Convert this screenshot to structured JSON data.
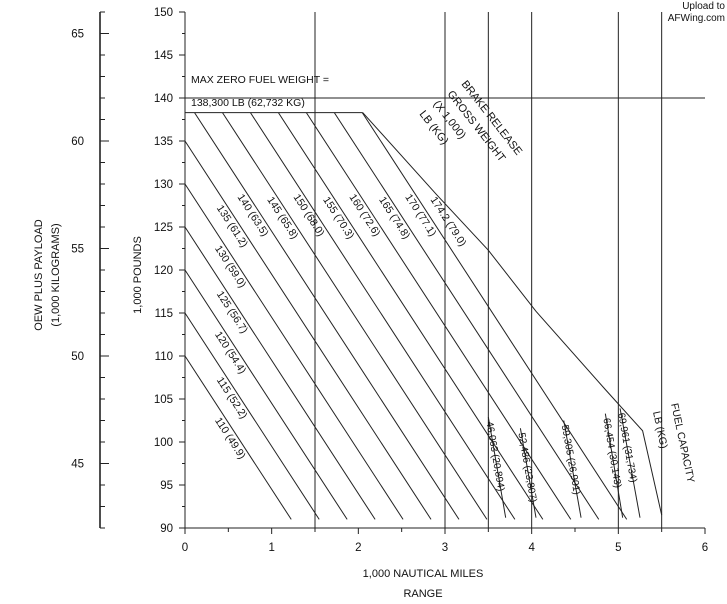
{
  "watermark": {
    "line1": "Upload to",
    "line2": "AFWing.com"
  },
  "chart_data": {
    "type": "line",
    "title": "",
    "xlabel": "1,000 NAUTICAL MILES",
    "xlabel2": "RANGE",
    "ylabel": "1,000 POUNDS",
    "ylabel_left": "OEW PLUS PAYLOAD",
    "ylabel_left2": "(1,000 KILOGRAMS)",
    "xlim": [
      0,
      6
    ],
    "ylim": [
      90,
      150
    ],
    "grid": true,
    "x_ticks": [
      0,
      1,
      2,
      3,
      4,
      5,
      6
    ],
    "y_ticks": [
      90,
      95,
      100,
      105,
      110,
      115,
      120,
      125,
      130,
      135,
      140,
      145,
      150
    ],
    "kg_ticks": [
      45,
      50,
      55,
      60,
      65
    ],
    "kg_scale": {
      "min": 42,
      "max": 66
    },
    "x_gridlines": [
      1.5,
      3.5,
      5.5
    ],
    "y_gridlines": [
      140
    ],
    "max_zfw": {
      "value": 138.3,
      "label_line1": "MAX ZERO FUEL WEIGHT =",
      "label_line2": "138,300 LB (62,732 KG)"
    },
    "gross_weight_header": [
      "BRAKE RELEASE",
      "GROSS WEIGHT",
      "(X 1,000)",
      "LB (KG)"
    ],
    "fuel_capacity_header": [
      "FUEL CAPACITY",
      "LB (KG)"
    ],
    "slope_per_1000nm": -15.5,
    "gross_weight_series": [
      {
        "label": "110",
        "kg": "(49.9)",
        "y_at_zero": 110
      },
      {
        "label": "115",
        "kg": "(52.2)",
        "y_at_zero": 115
      },
      {
        "label": "120",
        "kg": "(54.4)",
        "y_at_zero": 120
      },
      {
        "label": "125",
        "kg": "(56.7)",
        "y_at_zero": 125
      },
      {
        "label": "130",
        "kg": "(59.0)",
        "y_at_zero": 130
      },
      {
        "label": "135",
        "kg": "(61.2)",
        "y_at_zero": 135
      },
      {
        "label": "140",
        "kg": "(63.5)",
        "y_at_zero": 140
      },
      {
        "label": "145",
        "kg": "(65.8)",
        "y_at_zero": 145
      },
      {
        "label": "150",
        "kg": "(68.0)",
        "y_at_zero": 150
      },
      {
        "label": "155",
        "kg": "(70.3)",
        "y_at_zero": 155
      },
      {
        "label": "160",
        "kg": "(72.6)",
        "y_at_zero": 160
      },
      {
        "label": "165",
        "kg": "(74.8)",
        "y_at_zero": 165
      },
      {
        "label": "170",
        "kg": "(77.1)",
        "y_at_zero": 170
      },
      {
        "label": "174.2",
        "kg": "(79.0)",
        "y_at_zero": 174.2
      }
    ],
    "fuel_capacity_series": [
      {
        "label": "46,063",
        "kg": "(20,894)",
        "top": [
          3.5,
          102.9
        ],
        "bottom": [
          3.7,
          91.2
        ]
      },
      {
        "label": "52,486",
        "kg": "(23,807)",
        "top": [
          3.87,
          101.6
        ],
        "bottom": [
          4.05,
          91.2
        ]
      },
      {
        "label": "59,305",
        "kg": "(26,901)",
        "top": [
          4.37,
          102.5
        ],
        "bottom": [
          4.57,
          91.2
        ]
      },
      {
        "label": "66,454",
        "kg": "(30,143)",
        "top": [
          4.85,
          103.3
        ],
        "bottom": [
          5.05,
          91.2
        ]
      },
      {
        "label": "69,961",
        "kg": "(31,734)",
        "top": [
          5.02,
          103.9
        ],
        "bottom": [
          5.25,
          91.2
        ]
      }
    ],
    "envelope": [
      [
        2.05,
        138.3
      ],
      [
        2.9,
        128.8
      ],
      [
        3.5,
        122.3
      ],
      [
        4.05,
        115.2
      ],
      [
        4.85,
        106.1
      ],
      [
        5.28,
        101.3
      ],
      [
        5.5,
        91.5
      ]
    ]
  }
}
